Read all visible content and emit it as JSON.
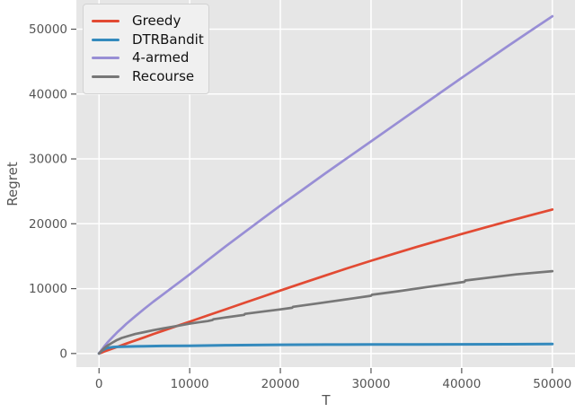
{
  "chart_data": {
    "type": "line",
    "title": "",
    "xlabel": "T",
    "ylabel": "Regret",
    "x_ticks": [
      0,
      10000,
      20000,
      30000,
      40000,
      50000
    ],
    "y_ticks": [
      0,
      10000,
      20000,
      30000,
      40000,
      50000
    ],
    "xlim": [
      -2500,
      52500
    ],
    "ylim": [
      -2100,
      54500
    ],
    "grid": true,
    "legend_position": "upper left",
    "series": [
      {
        "name": "Greedy",
        "color": "#E24A33",
        "x": [
          0,
          300,
          600,
          1000,
          2000,
          3000,
          4000,
          5000,
          6000,
          7000,
          8000,
          9000,
          10000,
          12000,
          14000,
          16000,
          18000,
          20000,
          22500,
          25000,
          27500,
          30000,
          32500,
          35000,
          37500,
          40000,
          42500,
          45000,
          47500,
          50000
        ],
        "y": [
          0,
          160,
          320,
          520,
          1020,
          1520,
          2010,
          2500,
          3000,
          3480,
          3960,
          4430,
          4900,
          5870,
          6830,
          7790,
          8750,
          9700,
          10880,
          12050,
          13190,
          14300,
          15370,
          16410,
          17430,
          18420,
          19390,
          20340,
          21280,
          22200
        ]
      },
      {
        "name": "DTRBandit",
        "color": "#348ABD",
        "x": [
          0,
          200,
          400,
          600,
          800,
          1000,
          1500,
          2000,
          3000,
          4000,
          5000,
          7000,
          10000,
          14000,
          20000,
          25000,
          30000,
          35000,
          40000,
          45000,
          50000
        ],
        "y": [
          0,
          300,
          520,
          670,
          790,
          870,
          980,
          1030,
          1075,
          1100,
          1120,
          1160,
          1200,
          1270,
          1350,
          1370,
          1385,
          1400,
          1415,
          1430,
          1450
        ]
      },
      {
        "name": "4-armed",
        "color": "#988ED5",
        "x": [
          0,
          300,
          600,
          1000,
          1500,
          2000,
          2500,
          3000,
          4000,
          5000,
          6000,
          7000,
          8000,
          9000,
          10000,
          12000,
          14000,
          16000,
          18000,
          20000,
          22500,
          25000,
          27500,
          30000,
          32500,
          35000,
          37500,
          40000,
          42500,
          45000,
          47500,
          50000
        ],
        "y": [
          0,
          600,
          1150,
          1800,
          2550,
          3250,
          3900,
          4550,
          5750,
          6900,
          8000,
          9050,
          10100,
          11150,
          12200,
          14400,
          16550,
          18650,
          20750,
          22800,
          25300,
          27800,
          30250,
          32700,
          35150,
          37600,
          40050,
          42500,
          44900,
          47300,
          49650,
          52000
        ]
      },
      {
        "name": "Recourse",
        "color": "#777777",
        "x": [
          0,
          400,
          800,
          1500,
          2000,
          2500,
          3000,
          4000,
          5000,
          6000,
          7000,
          8000,
          9000,
          10000,
          11000,
          12000,
          12500,
          12600,
          14000,
          16000,
          16100,
          18000,
          20000,
          21300,
          21400,
          24000,
          26000,
          28000,
          30000,
          30100,
          33000,
          36000,
          39000,
          40300,
          40400,
          43000,
          46000,
          50000
        ],
        "y": [
          0,
          600,
          1100,
          1700,
          2100,
          2400,
          2600,
          3000,
          3300,
          3600,
          3850,
          4100,
          4350,
          4600,
          4800,
          5000,
          5150,
          5280,
          5560,
          5950,
          6100,
          6450,
          6800,
          7050,
          7200,
          7700,
          8100,
          8500,
          8900,
          9050,
          9600,
          10200,
          10800,
          11050,
          11260,
          11700,
          12200,
          12700
        ]
      }
    ]
  },
  "style": {
    "figure_bg": "#ffffff",
    "axes_bg": "#e6e6e6",
    "grid_color": "#ffffff",
    "tick_color": "#555555",
    "tick_label_color": "#555555",
    "axis_label_color": "#555555",
    "legend_bg": "#f0f0f0",
    "legend_border": "#d2d2d2",
    "legend_text": "#121212"
  }
}
